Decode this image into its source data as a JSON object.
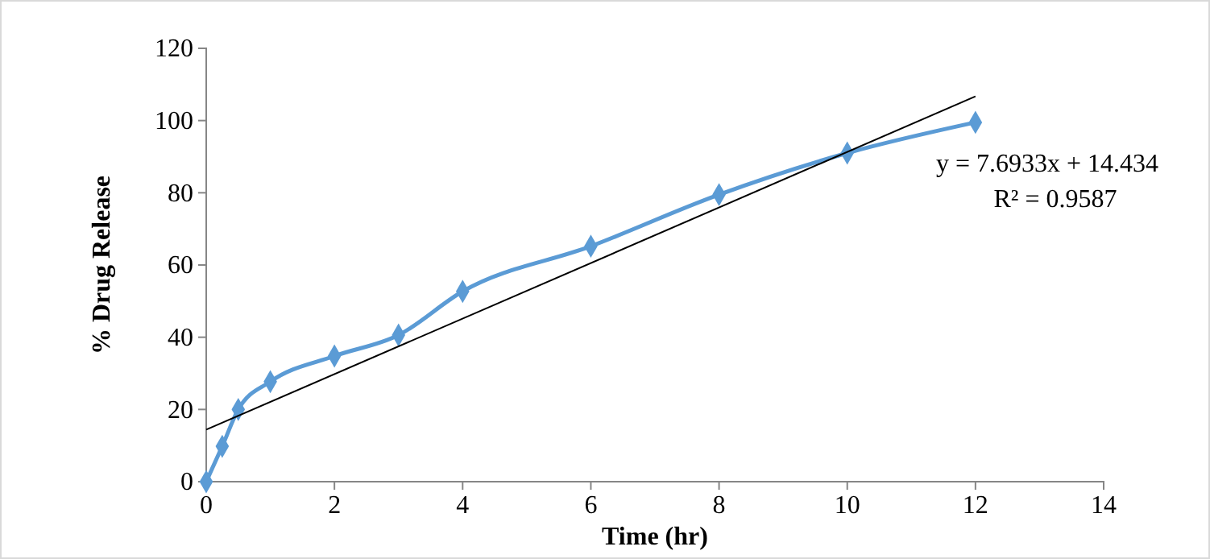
{
  "chart_data": {
    "type": "line",
    "xlabel": "Time (hr)",
    "ylabel": "% Drug Release",
    "xlim": [
      0,
      14
    ],
    "xticks": [
      0,
      2,
      4,
      6,
      8,
      10,
      12,
      14
    ],
    "ylim": [
      0,
      120
    ],
    "yticks": [
      0,
      20,
      40,
      60,
      80,
      100,
      120
    ],
    "grid": false,
    "marker": "diamond",
    "series": [
      {
        "color": "#5b9bd5",
        "x": [
          0,
          0.25,
          0.5,
          1,
          2,
          3,
          4,
          6,
          8,
          10,
          12
        ],
        "values": [
          0,
          9.8,
          20,
          27.7,
          34.8,
          40.6,
          52.7,
          65.2,
          79.5,
          91,
          99.5
        ]
      },
      {
        "type": "line",
        "color": "#000000",
        "marker": "none",
        "x": [
          0,
          12
        ],
        "values": [
          14.4,
          106.7
        ]
      }
    ],
    "annotations": [
      "y = 7.6933x + 14.434",
      "R² = 0.9587"
    ]
  }
}
